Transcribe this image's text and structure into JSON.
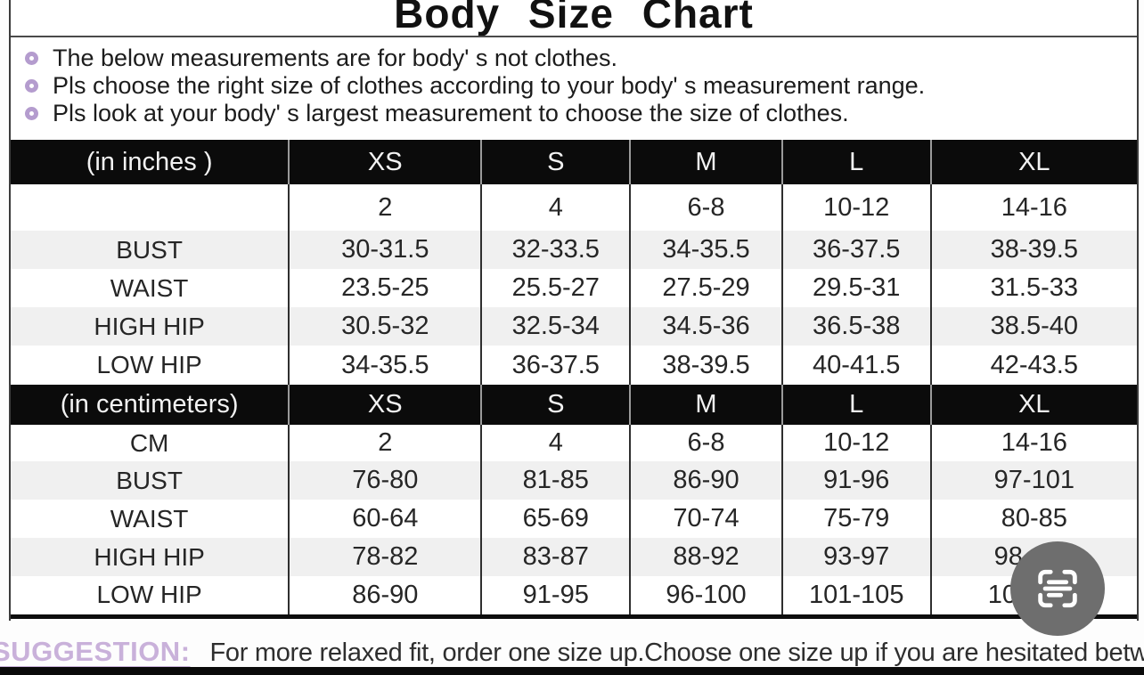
{
  "title": "Body  Size  Chart",
  "notes": [
    "The below measurements are for  body' s not clothes.",
    "Pls choose the right size of clothes according to your body' s  measurement range.",
    "Pls look  at your body' s  largest measurement to choose the size of clothes."
  ],
  "tables": [
    {
      "unit_label": "(in  inches )",
      "sizes": [
        "XS",
        "S",
        "M",
        "L",
        "XL"
      ],
      "rows": [
        {
          "label": "",
          "values": [
            "2",
            "4",
            "6-8",
            "10-12",
            "14-16"
          ]
        },
        {
          "label": "BUST",
          "values": [
            "30-31.5",
            "32-33.5",
            "34-35.5",
            "36-37.5",
            "38-39.5"
          ]
        },
        {
          "label": "WAIST",
          "values": [
            "23.5-25",
            "25.5-27",
            "27.5-29",
            "29.5-31",
            "31.5-33"
          ]
        },
        {
          "label": "HIGH HIP",
          "values": [
            "30.5-32",
            "32.5-34",
            "34.5-36",
            "36.5-38",
            "38.5-40"
          ]
        },
        {
          "label": "LOW HIP",
          "values": [
            "34-35.5",
            "36-37.5",
            "38-39.5",
            "40-41.5",
            "42-43.5"
          ]
        }
      ]
    },
    {
      "unit_label": "(in centimeters)",
      "sizes": [
        "XS",
        "S",
        "M",
        "L",
        "XL"
      ],
      "rows": [
        {
          "label": "CM",
          "values": [
            "2",
            "4",
            "6-8",
            "10-12",
            "14-16"
          ]
        },
        {
          "label": "BUST",
          "values": [
            "76-80",
            "81-85",
            "86-90",
            "91-96",
            "97-101"
          ]
        },
        {
          "label": "WAIST",
          "values": [
            "60-64",
            "65-69",
            "70-74",
            "75-79",
            "80-85"
          ]
        },
        {
          "label": "HIGH HIP",
          "values": [
            "78-82",
            "83-87",
            "88-92",
            "93-97",
            "98-102"
          ]
        },
        {
          "label": "LOW HIP",
          "values": [
            "86-90",
            "91-95",
            "96-100",
            "101-105",
            "106-110"
          ]
        }
      ]
    }
  ],
  "suggestion": {
    "label": "SUGGESTION:",
    "text": "For more relaxed fit, order one size up.Choose one size up if you are hesitated between two sizes"
  },
  "scan_button": {
    "icon": "scan-text-icon"
  },
  "colors": {
    "header_bg": "#0b0b0b",
    "stripe_gray": "#f0f0f0",
    "bullet_lavender": "#b49cce",
    "suggestion_purple": "#c9b1da",
    "scan_button_gray": "#6e6e6e"
  }
}
